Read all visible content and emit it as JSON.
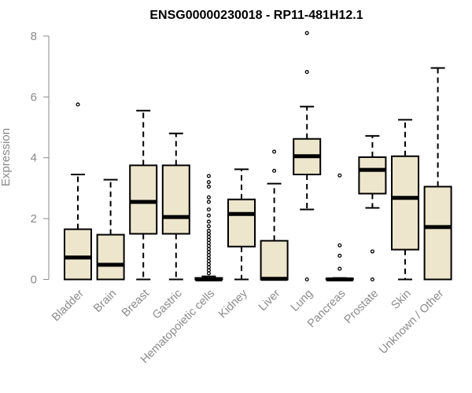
{
  "chart_data": {
    "type": "boxplot",
    "title": "ENSG00000230018 - RP11-481H12.1",
    "xlabel": "",
    "ylabel": "Expression",
    "ylim": [
      0,
      8.2
    ],
    "yticks": [
      0,
      2,
      4,
      6,
      8
    ],
    "box_fill": "#ede6cc",
    "grid": false,
    "categories": [
      "Bladder",
      "Brain",
      "Breast",
      "Gastric",
      "Hematopoietic cells",
      "Kidney",
      "Liver",
      "Lung",
      "Pancreas",
      "Prostate",
      "Skin",
      "Unknown / Other"
    ],
    "boxes": [
      {
        "q1": 0.0,
        "median": 0.72,
        "q3": 1.65,
        "whisker_low": 0.0,
        "whisker_high": 3.45,
        "outliers": [
          5.75
        ]
      },
      {
        "q1": 0.0,
        "median": 0.48,
        "q3": 1.47,
        "whisker_low": 0.0,
        "whisker_high": 3.28,
        "outliers": []
      },
      {
        "q1": 1.5,
        "median": 2.55,
        "q3": 3.75,
        "whisker_low": 0.0,
        "whisker_high": 5.55,
        "outliers": []
      },
      {
        "q1": 1.5,
        "median": 2.05,
        "q3": 3.75,
        "whisker_low": 0.0,
        "whisker_high": 4.8,
        "outliers": []
      },
      {
        "q1": 0.0,
        "median": 0.0,
        "q3": 0.05,
        "whisker_low": 0.0,
        "whisker_high": 0.1,
        "outliers": [
          0.2,
          0.3,
          0.4,
          0.5,
          0.6,
          0.7,
          0.8,
          0.9,
          1.0,
          1.1,
          1.2,
          1.3,
          1.4,
          1.5,
          1.6,
          1.75,
          1.9,
          2.1,
          2.3,
          2.55,
          2.7,
          3.05,
          3.2,
          3.4
        ]
      },
      {
        "q1": 1.08,
        "median": 2.15,
        "q3": 2.63,
        "whisker_low": 0.0,
        "whisker_high": 3.62,
        "outliers": []
      },
      {
        "q1": 0.0,
        "median": 0.02,
        "q3": 1.27,
        "whisker_low": 0.0,
        "whisker_high": 3.15,
        "outliers": [
          3.57,
          4.2
        ]
      },
      {
        "q1": 3.45,
        "median": 4.05,
        "q3": 4.62,
        "whisker_low": 2.3,
        "whisker_high": 5.68,
        "outliers": [
          0.0,
          6.82,
          8.1
        ]
      },
      {
        "q1": 0.0,
        "median": 0.0,
        "q3": 0.03,
        "whisker_low": 0.0,
        "whisker_high": 0.05,
        "outliers": [
          0.35,
          0.78,
          1.12,
          3.42
        ]
      },
      {
        "q1": 2.82,
        "median": 3.6,
        "q3": 4.02,
        "whisker_low": 2.35,
        "whisker_high": 4.72,
        "outliers": [
          0.0,
          0.92
        ]
      },
      {
        "q1": 0.98,
        "median": 2.68,
        "q3": 4.05,
        "whisker_low": 0.0,
        "whisker_high": 5.25,
        "outliers": []
      },
      {
        "q1": 0.0,
        "median": 1.72,
        "q3": 3.05,
        "whisker_low": 0.0,
        "whisker_high": 6.95,
        "outliers": []
      }
    ]
  }
}
